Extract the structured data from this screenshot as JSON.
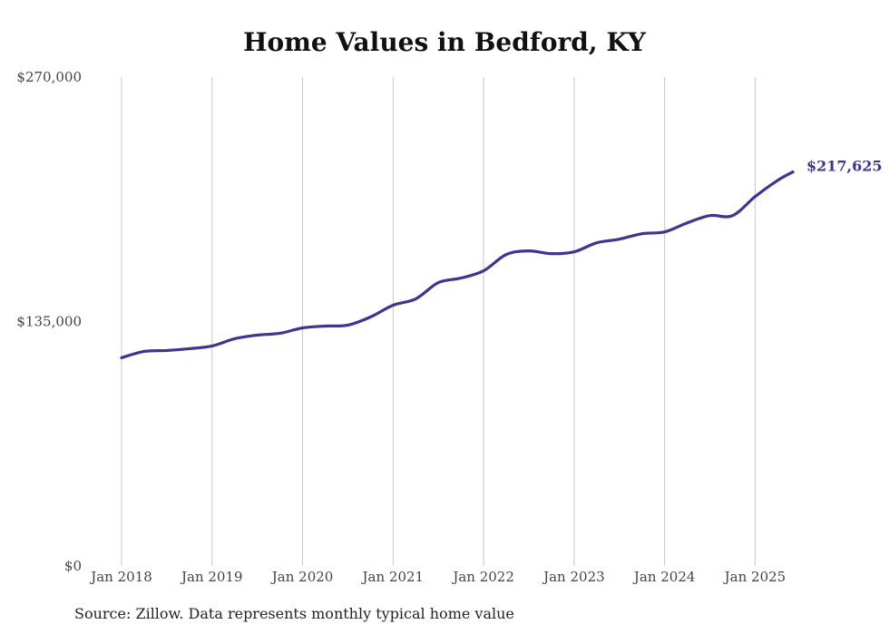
{
  "chart_data": {
    "type": "line",
    "title": "Home Values in Bedford, KY",
    "source": "Source: Zillow. Data represents monthly typical home value",
    "xlabel": "",
    "ylabel": "",
    "ylim": [
      0,
      270000
    ],
    "y_ticks": [
      0,
      135000,
      270000
    ],
    "y_tick_labels": [
      "$0",
      "$135,000",
      "$270,000"
    ],
    "x_range": [
      "2018-01",
      "2025-06"
    ],
    "x_ticks": [
      "2018-01",
      "2019-01",
      "2020-01",
      "2021-01",
      "2022-01",
      "2023-01",
      "2024-01",
      "2025-01"
    ],
    "x_tick_labels": [
      "Jan 2018",
      "Jan 2019",
      "Jan 2020",
      "Jan 2021",
      "Jan 2022",
      "Jan 2023",
      "Jan 2024",
      "Jan 2025"
    ],
    "grid": "vertical",
    "line_color": "#3d3590",
    "end_label": "$217,625",
    "series": [
      {
        "x": [
          "2018-01",
          "2018-04",
          "2018-07",
          "2018-10",
          "2019-01",
          "2019-04",
          "2019-07",
          "2019-10",
          "2020-01",
          "2020-04",
          "2020-07",
          "2020-10",
          "2021-01",
          "2021-04",
          "2021-07",
          "2021-10",
          "2022-01",
          "2022-04",
          "2022-07",
          "2022-10",
          "2023-01",
          "2023-04",
          "2023-07",
          "2023-10",
          "2024-01",
          "2024-04",
          "2024-07",
          "2024-10",
          "2025-01",
          "2025-04",
          "2025-06"
        ],
        "values": [
          115000,
          118500,
          119000,
          120000,
          121500,
          125500,
          127500,
          128500,
          131500,
          132500,
          133000,
          137500,
          144000,
          147500,
          156500,
          159000,
          163000,
          172000,
          174000,
          172500,
          173500,
          178500,
          180500,
          183500,
          184500,
          189500,
          193500,
          193500,
          204000,
          213000,
          217625
        ]
      }
    ]
  }
}
